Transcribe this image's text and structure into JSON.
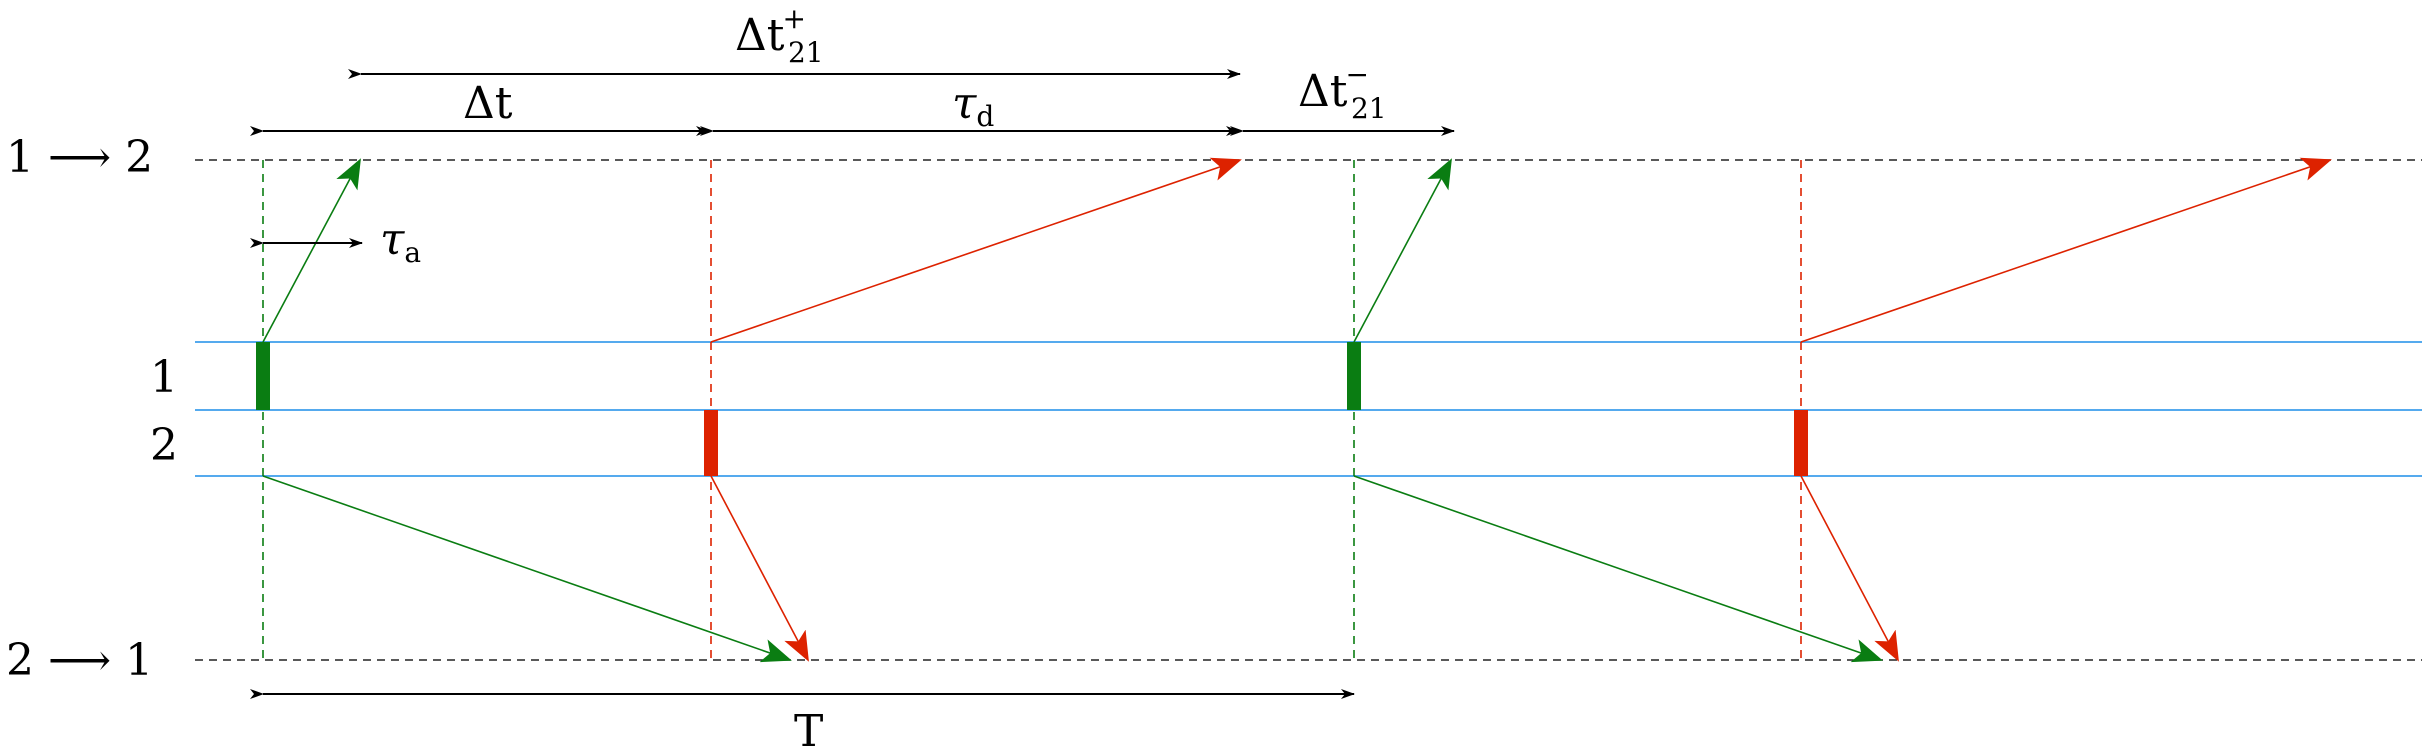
{
  "levels": {
    "top": {
      "from": "1",
      "arrow": "⟶",
      "to": "2"
    },
    "bottom": {
      "from": "2",
      "arrow": "⟶",
      "to": "1"
    },
    "lane1": "1",
    "lane2": "2"
  },
  "intervals": {
    "delta_t_plus": {
      "base": "Δt",
      "sub": "21",
      "sup": "+"
    },
    "delta_t": {
      "base": "Δt"
    },
    "tau_d": {
      "base": "τ",
      "sub": "d"
    },
    "delta_t_minus": {
      "base": "Δt",
      "sub": "21",
      "sup": "−"
    },
    "tau_a": {
      "base": "τ",
      "sub": "a"
    },
    "period": {
      "base": "T"
    }
  },
  "colors": {
    "green": "#0a7d12",
    "red": "#dd2200",
    "blue": "#55aaee",
    "black": "#000000"
  }
}
